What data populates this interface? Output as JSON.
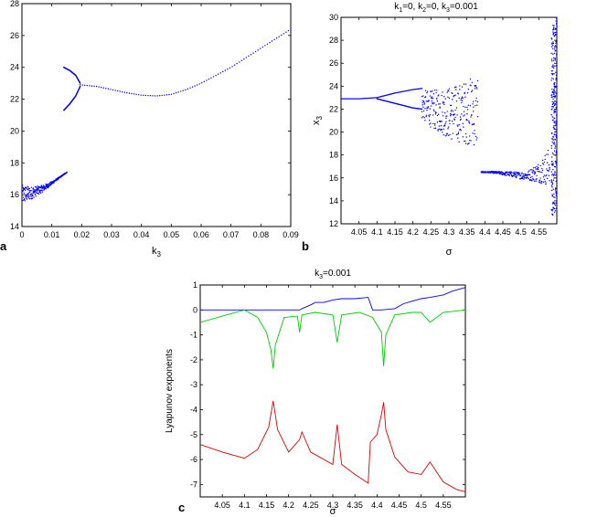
{
  "panel_labels": {
    "a": "a",
    "b": "b",
    "c": "c"
  },
  "chart_data": [
    {
      "id": "a",
      "type": "scatter",
      "title": "",
      "xlabel": "k3",
      "ylabel": "",
      "xlim": [
        0,
        0.09
      ],
      "ylim": [
        14,
        28
      ],
      "xticks": [
        "0",
        "0.01",
        "0.02",
        "0.03",
        "0.04",
        "0.05",
        "0.06",
        "0.07",
        "0.08",
        "0.09"
      ],
      "yticks": [
        "14",
        "16",
        "18",
        "20",
        "22",
        "24",
        "26",
        "28"
      ],
      "grid": false,
      "series": [
        {
          "color": "#0000ff",
          "branches": [
            {
              "x": [
                0,
                0.003,
                0.006,
                0.009,
                0.012,
                0.015
              ],
              "y": [
                16.0,
                16.1,
                16.3,
                16.6,
                17.0,
                17.4
              ],
              "spread": [
                1.2,
                0.8,
                0.5,
                0.25,
                0.1,
                0.05
              ]
            },
            {
              "x": [
                0.014,
                0.016,
                0.018,
                0.0195
              ],
              "y": [
                24.0,
                23.8,
                23.5,
                23.0
              ],
              "spread": [
                0.0,
                0.0,
                0.0,
                0.0
              ]
            },
            {
              "x": [
                0.014,
                0.016,
                0.018,
                0.0195
              ],
              "y": [
                21.3,
                21.7,
                22.2,
                22.8
              ],
              "spread": [
                0.0,
                0.0,
                0.0,
                0.0
              ]
            },
            {
              "x": [
                0.0195,
                0.025,
                0.03,
                0.035,
                0.04,
                0.045,
                0.05,
                0.055,
                0.06,
                0.065,
                0.07,
                0.075,
                0.08,
                0.085,
                0.09
              ],
              "y": [
                22.9,
                22.8,
                22.6,
                22.4,
                22.25,
                22.2,
                22.3,
                22.6,
                23.0,
                23.5,
                24.0,
                24.6,
                25.2,
                25.8,
                26.4
              ],
              "spread": [
                0,
                0,
                0,
                0,
                0,
                0,
                0,
                0,
                0,
                0,
                0,
                0,
                0,
                0,
                0
              ]
            }
          ]
        }
      ]
    },
    {
      "id": "b",
      "type": "scatter",
      "title": "k1=0, k2=0, k3=0.001",
      "xlabel": "σ",
      "ylabel": "x3",
      "xlim": [
        4.0,
        4.6
      ],
      "ylim": [
        12,
        30
      ],
      "xticks": [
        "4.05",
        "4.1",
        "4.15",
        "4.2",
        "4.25",
        "4.3",
        "4.35",
        "4.4",
        "4.45",
        "4.5",
        "4.55"
      ],
      "yticks": [
        "12",
        "14",
        "16",
        "18",
        "20",
        "22",
        "24",
        "26",
        "28",
        "30"
      ],
      "grid": false,
      "series": [
        {
          "color": "#0000ff",
          "branches": [
            {
              "x": [
                4.0,
                4.05,
                4.1,
                4.15,
                4.2,
                4.225
              ],
              "y": [
                22.9,
                22.9,
                23.0,
                23.4,
                23.7,
                23.8
              ],
              "spread": [
                0,
                0,
                0,
                0,
                0,
                0
              ]
            },
            {
              "x": [
                4.1,
                4.15,
                4.2,
                4.225
              ],
              "y": [
                22.9,
                22.5,
                22.1,
                22.0
              ],
              "spread": [
                0,
                0,
                0,
                0
              ]
            },
            {
              "x": [
                4.225,
                4.25,
                4.28,
                4.31,
                4.34,
                4.38
              ],
              "y": [
                22.4,
                22.0,
                21.8,
                21.6,
                21.7,
                21.9
              ],
              "spread": [
                2.5,
                3.2,
                4.0,
                4.8,
                5.3,
                6.6
              ]
            },
            {
              "x": [
                4.39,
                4.42,
                4.45,
                4.48,
                4.5,
                4.52,
                4.55,
                4.58
              ],
              "y": [
                16.5,
                16.5,
                16.4,
                16.3,
                16.2,
                16.2,
                16.5,
                17.0
              ],
              "spread": [
                0.1,
                0.15,
                0.3,
                0.5,
                0.6,
                0.8,
                1.8,
                3.5
              ]
            },
            {
              "x": [
                4.585,
                4.59,
                4.595,
                4.6
              ],
              "y": [
                20.5,
                21.0,
                21.5,
                22.0
              ],
              "spread": [
                16,
                17,
                17,
                17
              ]
            }
          ]
        }
      ]
    },
    {
      "id": "c",
      "type": "line",
      "title": "k3=0.001",
      "xlabel": "σ",
      "ylabel": "Lyapunov exponents",
      "xlim": [
        4.0,
        4.6
      ],
      "ylim": [
        -7.5,
        1
      ],
      "xticks": [
        "4.05",
        "4.1",
        "4.15",
        "4.2",
        "4.25",
        "4.3",
        "4.35",
        "4.4",
        "4.45",
        "4.5",
        "4.55"
      ],
      "yticks": [
        "1",
        "0",
        "-1",
        "-2",
        "-3",
        "-4",
        "-5",
        "-6",
        "-7"
      ],
      "grid": false,
      "series": [
        {
          "color": "#0000ff",
          "x": [
            4.0,
            4.1,
            4.2,
            4.225,
            4.23,
            4.25,
            4.26,
            4.28,
            4.3,
            4.32,
            4.35,
            4.38,
            4.39,
            4.41,
            4.44,
            4.46,
            4.48,
            4.5,
            4.52,
            4.55,
            4.57,
            4.6
          ],
          "y": [
            0.0,
            0.0,
            0.0,
            0.0,
            0.05,
            0.2,
            0.3,
            0.3,
            0.4,
            0.45,
            0.45,
            0.5,
            0.0,
            0.0,
            0.05,
            0.25,
            0.35,
            0.45,
            0.5,
            0.6,
            0.75,
            0.9
          ]
        },
        {
          "color": "#00cc00",
          "x": [
            4.0,
            4.05,
            4.1,
            4.13,
            4.15,
            4.16,
            4.165,
            4.17,
            4.19,
            4.22,
            4.225,
            4.23,
            4.26,
            4.3,
            4.31,
            4.32,
            4.36,
            4.39,
            4.41,
            4.415,
            4.42,
            4.44,
            4.48,
            4.5,
            4.52,
            4.55,
            4.6
          ],
          "y": [
            -0.5,
            -0.25,
            0.0,
            -0.3,
            -0.9,
            -1.6,
            -2.35,
            -1.4,
            -0.3,
            -0.25,
            -0.9,
            -0.2,
            -0.1,
            -0.2,
            -1.3,
            -0.2,
            -0.1,
            -0.3,
            -0.9,
            -2.25,
            -1.0,
            -0.2,
            -0.1,
            -0.1,
            -0.5,
            -0.1,
            0.0
          ]
        },
        {
          "color": "#dd0000",
          "x": [
            4.0,
            4.05,
            4.1,
            4.13,
            4.155,
            4.165,
            4.175,
            4.2,
            4.225,
            4.23,
            4.25,
            4.3,
            4.31,
            4.32,
            4.35,
            4.38,
            4.385,
            4.4,
            4.41,
            4.415,
            4.42,
            4.44,
            4.47,
            4.5,
            4.52,
            4.55,
            4.58,
            4.6
          ],
          "y": [
            -5.4,
            -5.7,
            -5.95,
            -5.6,
            -4.7,
            -3.65,
            -4.8,
            -5.7,
            -5.2,
            -4.9,
            -5.7,
            -6.2,
            -4.6,
            -6.2,
            -6.6,
            -6.95,
            -5.3,
            -5.0,
            -4.2,
            -3.7,
            -4.8,
            -5.9,
            -6.5,
            -6.6,
            -6.1,
            -6.9,
            -7.2,
            -7.3
          ]
        }
      ]
    }
  ]
}
